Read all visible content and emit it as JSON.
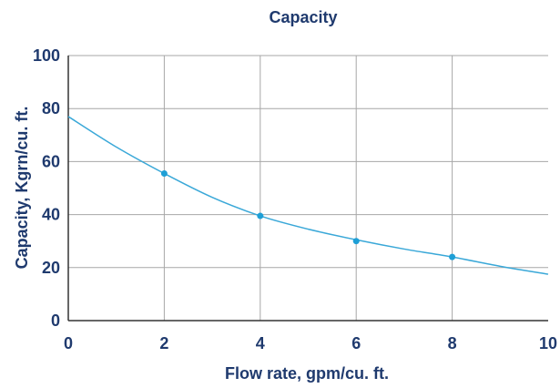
{
  "chart_data": {
    "type": "line",
    "title": "Capacity",
    "xlabel": "Flow rate, gpm/cu. ft.",
    "ylabel": "Capacity, Kgrn/cu. ft.",
    "xlim": [
      0,
      10
    ],
    "ylim": [
      0,
      100
    ],
    "x_ticks": [
      "0",
      "2",
      "4",
      "6",
      "8",
      "10"
    ],
    "y_ticks": [
      "0",
      "20",
      "40",
      "60",
      "80",
      "100"
    ],
    "grid": true,
    "legend": "none",
    "series": [
      {
        "curve_x": [
          0,
          1,
          2,
          3,
          4,
          5,
          6,
          7,
          8,
          9,
          10
        ],
        "curve_y": [
          77,
          65.5,
          55.5,
          46.5,
          39.5,
          34.5,
          30.5,
          27,
          24,
          20.5,
          17.5
        ],
        "marker_x": [
          2,
          4,
          6,
          8
        ],
        "marker_y": [
          55.5,
          39.5,
          30,
          24
        ]
      }
    ],
    "colors": {
      "text": "#1f3a6e",
      "line": "#3aa8d8",
      "marker": "#1e9fd6",
      "grid": "#a7a7a7",
      "axis": "#333333"
    }
  }
}
